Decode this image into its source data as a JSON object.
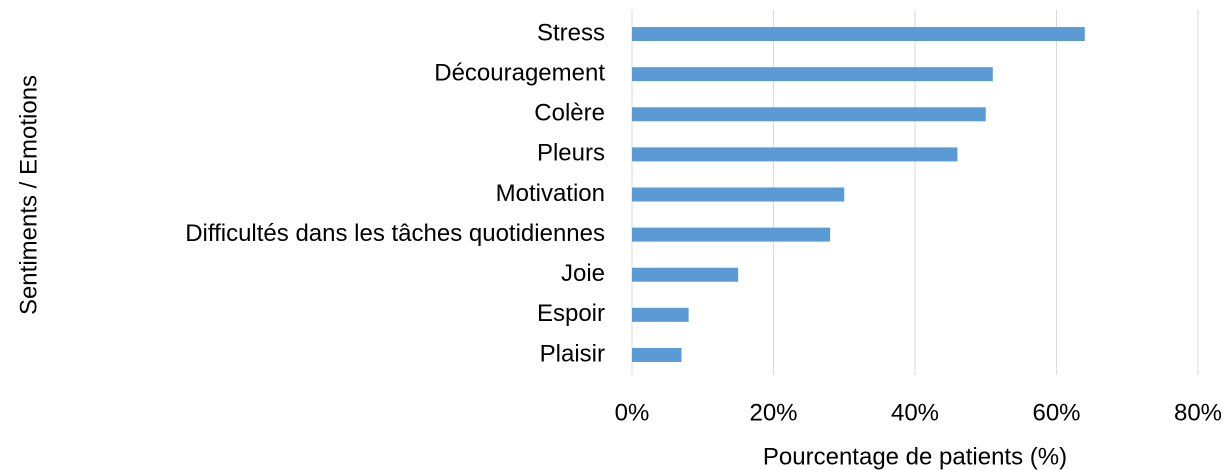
{
  "chart_data": {
    "type": "bar",
    "orientation": "horizontal",
    "xlabel": "Pourcentage de patients (%)",
    "ylabel": "Sentiments / Emotions",
    "categories": [
      "Stress",
      "Découragement",
      "Colère",
      "Pleurs",
      "Motivation",
      "Difficultés dans les tâches quotidiennes",
      "Joie",
      "Espoir",
      "Plaisir"
    ],
    "values": [
      64,
      51,
      50,
      46,
      30,
      28,
      15,
      8,
      7
    ],
    "color": "#5b9bd5",
    "xlim": [
      0,
      80
    ],
    "xticks": [
      {
        "value": 0,
        "label": "0%"
      },
      {
        "value": 20,
        "label": "20%"
      },
      {
        "value": 40,
        "label": "40%"
      },
      {
        "value": 60,
        "label": "60%"
      },
      {
        "value": 80,
        "label": "80%"
      }
    ],
    "grid": true
  }
}
